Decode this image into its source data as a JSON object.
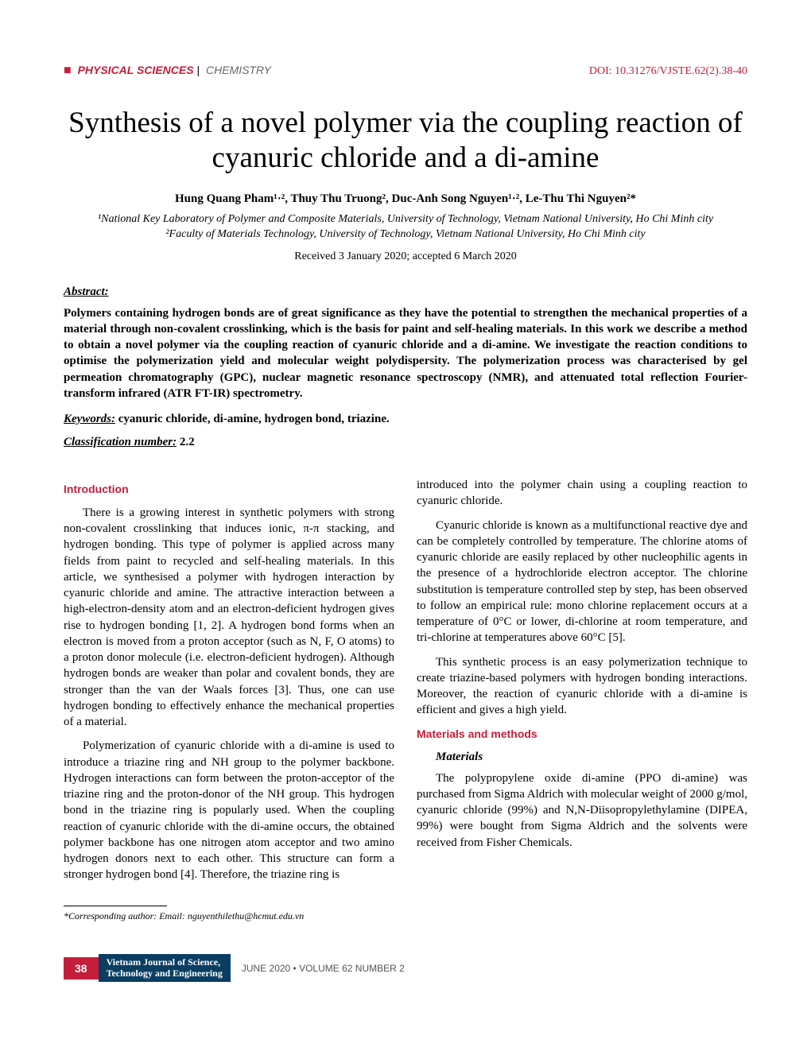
{
  "header": {
    "section_main": "PHYSICAL SCIENCES",
    "section_sub": "CHEMISTRY",
    "doi": "DOI: 10.31276/VJSTE.62(2).38-40"
  },
  "title": "Synthesis of a novel polymer via the coupling reaction of cyanuric chloride and a di-amine",
  "authors": "Hung Quang Pham¹·², Thuy Thu Truong², Duc-Anh Song Nguyen¹·², Le-Thu Thi Nguyen²*",
  "affiliations": [
    "¹National Key Laboratory of Polymer and Composite Materials, University of Technology, Vietnam National University, Ho Chi Minh city",
    "²Faculty of Materials Technology, University of Technology, Vietnam National University, Ho Chi Minh city"
  ],
  "dates": "Received 3 January 2020; accepted 6 March 2020",
  "abstract": {
    "label": "Abstract:",
    "text": "Polymers containing hydrogen bonds are of great significance as they have the potential to strengthen the mechanical properties of a material through non-covalent crosslinking, which is the basis for paint and self-healing materials. In this work we describe a method to obtain a novel polymer via the coupling reaction of cyanuric chloride and a di-amine. We investigate the reaction conditions to optimise the polymerization yield and molecular weight polydispersity. The polymerization process was characterised by gel permeation chromatography (GPC), nuclear magnetic resonance spectroscopy (NMR), and attenuated total reflection Fourier-transform infrared (ATR FT-IR) spectrometry."
  },
  "keywords": {
    "label": "Keywords:",
    "values": "cyanuric chloride, di-amine, hydrogen bond, triazine."
  },
  "classification": {
    "label": "Classification number:",
    "value": "2.2"
  },
  "body": {
    "intro_heading": "Introduction",
    "intro_p1": "There is a growing interest in synthetic polymers with strong non-covalent crosslinking that induces ionic, π-π stacking, and hydrogen bonding. This type of polymer is applied across many fields from paint to recycled and self-healing materials. In this article, we synthesised a polymer with hydrogen interaction by cyanuric chloride and amine. The attractive interaction between a high-electron-density atom and an electron-deficient hydrogen gives rise to hydrogen bonding [1, 2]. A hydrogen bond forms when an electron is moved from a proton acceptor (such as N, F, O atoms) to a proton donor molecule (i.e. electron-deficient hydrogen). Although hydrogen bonds are weaker than polar and covalent bonds, they are stronger than the van der Waals forces [3]. Thus, one can use hydrogen bonding to effectively enhance the mechanical properties of a material.",
    "intro_p2": "Polymerization of cyanuric chloride with a di-amine is used to introduce a triazine ring and NH group to the polymer backbone. Hydrogen interactions can form between the proton-acceptor of the triazine ring and the proton-donor of the NH group. This hydrogen bond in the triazine ring is popularly used. When the coupling reaction of cyanuric chloride with the di-amine occurs, the obtained polymer backbone has one nitrogen atom acceptor and two amino hydrogen donors next to each other. This structure can form a stronger hydrogen bond [4]. Therefore, the triazine ring is",
    "intro_p3": "introduced into the polymer chain using a coupling reaction to cyanuric chloride.",
    "intro_p4": "Cyanuric chloride is known as a multifunctional reactive dye and can be completely controlled by temperature. The chlorine atoms of cyanuric chloride are easily replaced by other nucleophilic agents in the presence of a hydrochloride electron acceptor. The chlorine substitution is temperature controlled step by step, has been observed to follow an empirical rule: mono chlorine replacement occurs at a temperature of 0°C or lower, di-chlorine at room temperature, and tri-chlorine at temperatures above 60°C [5].",
    "intro_p5": "This synthetic process is an easy polymerization technique to create triazine-based polymers with hydrogen bonding interactions. Moreover, the reaction of cyanuric chloride with a di-amine is efficient and gives a high yield.",
    "mm_heading": "Materials and methods",
    "materials_sub": "Materials",
    "mm_p1": "The polypropylene oxide di-amine (PPO di-amine) was purchased from Sigma Aldrich with molecular weight of 2000 g/mol, cyanuric chloride (99%) and N,N-Diisopropylethylamine (DIPEA, 99%) were bought from Sigma Aldrich and the solvents were received from Fisher Chemicals."
  },
  "footnote": "*Corresponding author: Email: nguyenthilethu@hcmut.edu.vn",
  "footer": {
    "page": "38",
    "journal_rotate": "VIETNAM",
    "journal_line1": "Vietnam Journal of Science,",
    "journal_line2": "Technology and Engineering",
    "issue": "JUNE 2020 • VOLUME 62 NUMBER 2"
  },
  "colors": {
    "accent": "#c41e3a",
    "journal_bg": "#0a3d62",
    "text_muted": "#666",
    "footer_text": "#555"
  }
}
